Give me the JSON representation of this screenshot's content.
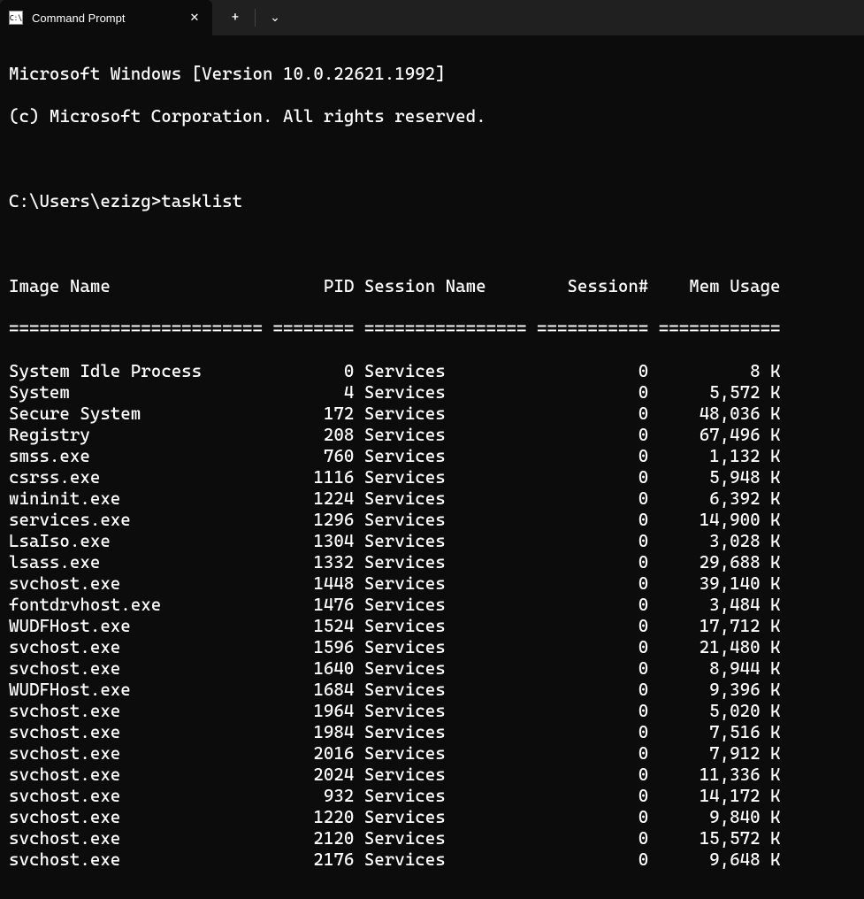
{
  "window": {
    "tab_title": "Command Prompt",
    "close_glyph": "✕",
    "new_tab_glyph": "+",
    "dropdown_glyph": "⌄"
  },
  "header": {
    "line1": "Microsoft Windows [Version 10.0.22621.1992]",
    "line2": "(c) Microsoft Corporation. All rights reserved."
  },
  "prompt": {
    "path": "C:\\Users\\ezizg>",
    "command": "tasklist"
  },
  "columns": {
    "c1": "Image Name",
    "c2": "PID",
    "c3": "Session Name",
    "c4": "Session#",
    "c5": "Mem Usage"
  },
  "separator": {
    "c1": "=========================",
    "c2": "========",
    "c3": "================",
    "c4": "===========",
    "c5": "============"
  },
  "rows": [
    {
      "name": "System Idle Process",
      "pid": "0",
      "sess": "Services",
      "snum": "0",
      "mem": "8 K"
    },
    {
      "name": "System",
      "pid": "4",
      "sess": "Services",
      "snum": "0",
      "mem": "5,572 K"
    },
    {
      "name": "Secure System",
      "pid": "172",
      "sess": "Services",
      "snum": "0",
      "mem": "48,036 K"
    },
    {
      "name": "Registry",
      "pid": "208",
      "sess": "Services",
      "snum": "0",
      "mem": "67,496 K"
    },
    {
      "name": "smss.exe",
      "pid": "760",
      "sess": "Services",
      "snum": "0",
      "mem": "1,132 K"
    },
    {
      "name": "csrss.exe",
      "pid": "1116",
      "sess": "Services",
      "snum": "0",
      "mem": "5,948 K"
    },
    {
      "name": "wininit.exe",
      "pid": "1224",
      "sess": "Services",
      "snum": "0",
      "mem": "6,392 K"
    },
    {
      "name": "services.exe",
      "pid": "1296",
      "sess": "Services",
      "snum": "0",
      "mem": "14,900 K"
    },
    {
      "name": "LsaIso.exe",
      "pid": "1304",
      "sess": "Services",
      "snum": "0",
      "mem": "3,028 K"
    },
    {
      "name": "lsass.exe",
      "pid": "1332",
      "sess": "Services",
      "snum": "0",
      "mem": "29,688 K"
    },
    {
      "name": "svchost.exe",
      "pid": "1448",
      "sess": "Services",
      "snum": "0",
      "mem": "39,140 K"
    },
    {
      "name": "fontdrvhost.exe",
      "pid": "1476",
      "sess": "Services",
      "snum": "0",
      "mem": "3,484 K"
    },
    {
      "name": "WUDFHost.exe",
      "pid": "1524",
      "sess": "Services",
      "snum": "0",
      "mem": "17,712 K"
    },
    {
      "name": "svchost.exe",
      "pid": "1596",
      "sess": "Services",
      "snum": "0",
      "mem": "21,480 K"
    },
    {
      "name": "svchost.exe",
      "pid": "1640",
      "sess": "Services",
      "snum": "0",
      "mem": "8,944 K"
    },
    {
      "name": "WUDFHost.exe",
      "pid": "1684",
      "sess": "Services",
      "snum": "0",
      "mem": "9,396 K"
    },
    {
      "name": "svchost.exe",
      "pid": "1964",
      "sess": "Services",
      "snum": "0",
      "mem": "5,020 K"
    },
    {
      "name": "svchost.exe",
      "pid": "1984",
      "sess": "Services",
      "snum": "0",
      "mem": "7,516 K"
    },
    {
      "name": "svchost.exe",
      "pid": "2016",
      "sess": "Services",
      "snum": "0",
      "mem": "7,912 K"
    },
    {
      "name": "svchost.exe",
      "pid": "2024",
      "sess": "Services",
      "snum": "0",
      "mem": "11,336 K"
    },
    {
      "name": "svchost.exe",
      "pid": "932",
      "sess": "Services",
      "snum": "0",
      "mem": "14,172 K"
    },
    {
      "name": "svchost.exe",
      "pid": "1220",
      "sess": "Services",
      "snum": "0",
      "mem": "9,840 K"
    },
    {
      "name": "svchost.exe",
      "pid": "2120",
      "sess": "Services",
      "snum": "0",
      "mem": "15,572 K"
    },
    {
      "name": "svchost.exe",
      "pid": "2176",
      "sess": "Services",
      "snum": "0",
      "mem": "9,648 K"
    }
  ],
  "widths": {
    "name": 25,
    "pid": 8,
    "sess": 16,
    "snum": 11,
    "mem": 12
  },
  "colors": {
    "bg": "#0c0c0c",
    "titlebar": "#202020",
    "text": "#ffffff"
  }
}
